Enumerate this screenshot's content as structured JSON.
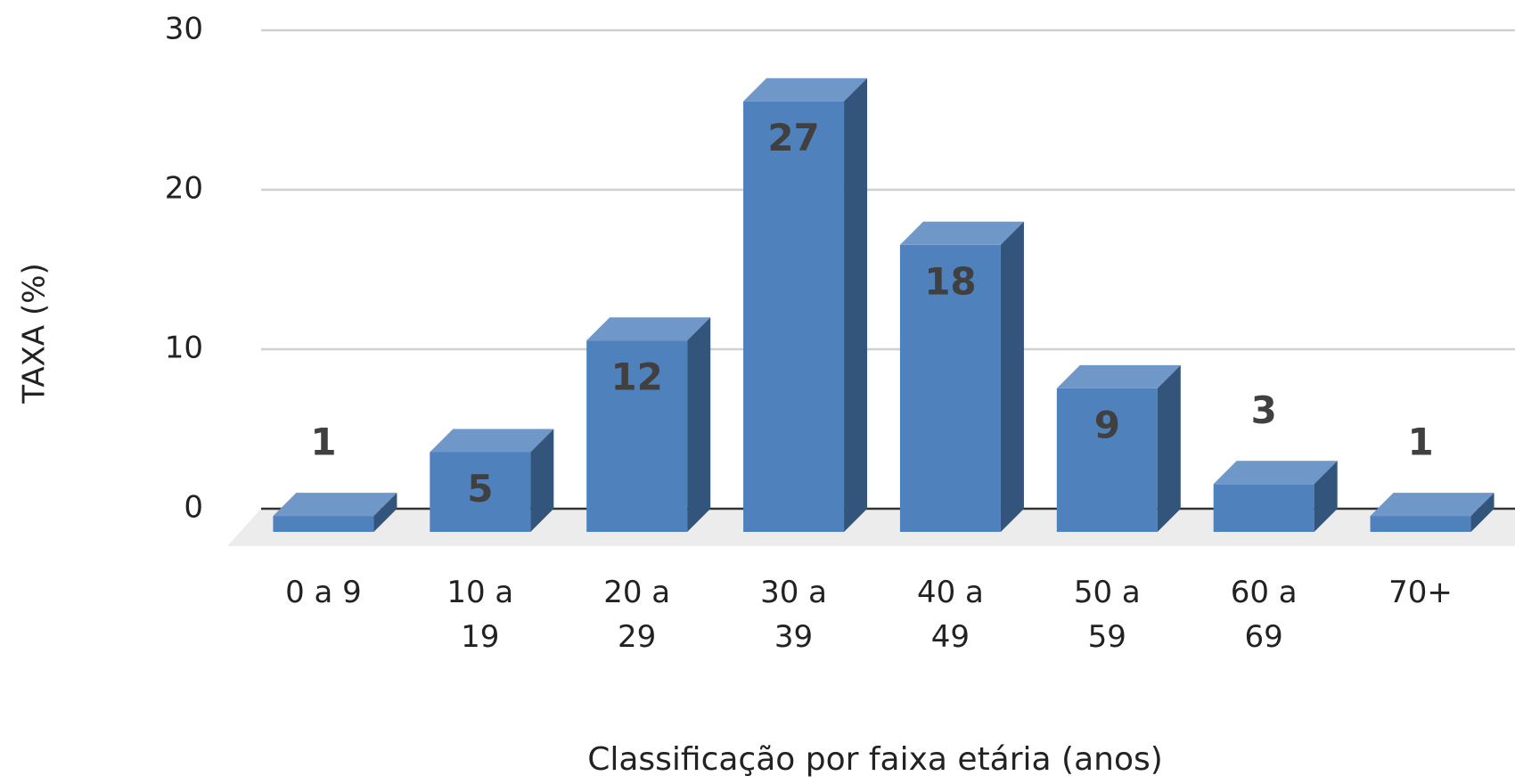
{
  "chart_data": {
    "type": "bar3d",
    "x_label": "Classificação por faixa etária (anos)",
    "y_label": "TAXA (%)",
    "categories": [
      "0 a 9",
      "10 a 19",
      "20 a 29",
      "30 a 39",
      "40 a 49",
      "50 a 59",
      "60 a 69",
      "70+"
    ],
    "values": [
      1,
      5,
      12,
      27,
      18,
      9,
      3,
      1
    ],
    "color": "#4f81bd",
    "ylim": [
      0,
      30
    ],
    "yticks": [
      0,
      10,
      20,
      30
    ],
    "grid": true
  }
}
